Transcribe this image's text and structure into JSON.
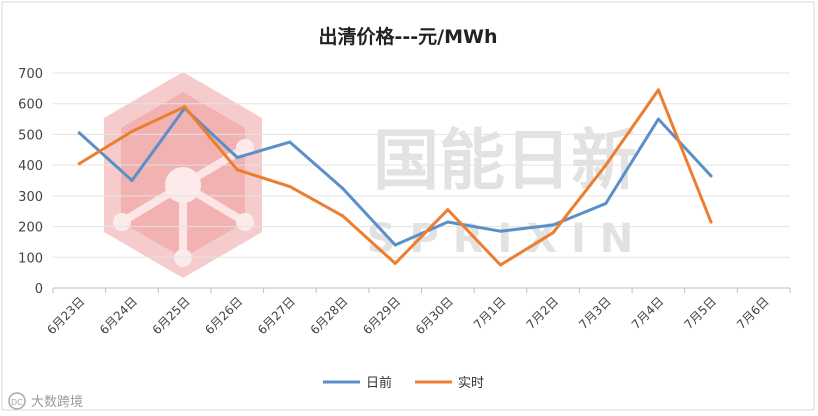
{
  "chart_data": {
    "type": "line",
    "title": "出清价格---元/MWh",
    "categories": [
      "6月23日",
      "6月24日",
      "6月25日",
      "6月26日",
      "6月27日",
      "6月28日",
      "6月29日",
      "6月30日",
      "7月1日",
      "7月2日",
      "7月3日",
      "7月4日",
      "7月5日",
      "7月6日"
    ],
    "series": [
      {
        "name": "日前",
        "color": "#5b8fc8",
        "values": [
          505,
          350,
          585,
          425,
          475,
          325,
          140,
          215,
          185,
          205,
          275,
          550,
          365,
          null
        ]
      },
      {
        "name": "实时",
        "color": "#ed7d31",
        "values": [
          405,
          510,
          590,
          385,
          330,
          235,
          80,
          255,
          75,
          180,
          400,
          645,
          215,
          null
        ]
      }
    ],
    "ylim": [
      0,
      700
    ],
    "yticks": [
      0,
      100,
      200,
      300,
      400,
      500,
      600,
      700
    ],
    "grid": true,
    "legend_position": "bottom"
  },
  "watermark": {
    "brand_cn": "国能日新",
    "brand_en": "S P R I X I N",
    "corner_text": "大数跨境",
    "corner_logo_text": "DC"
  }
}
